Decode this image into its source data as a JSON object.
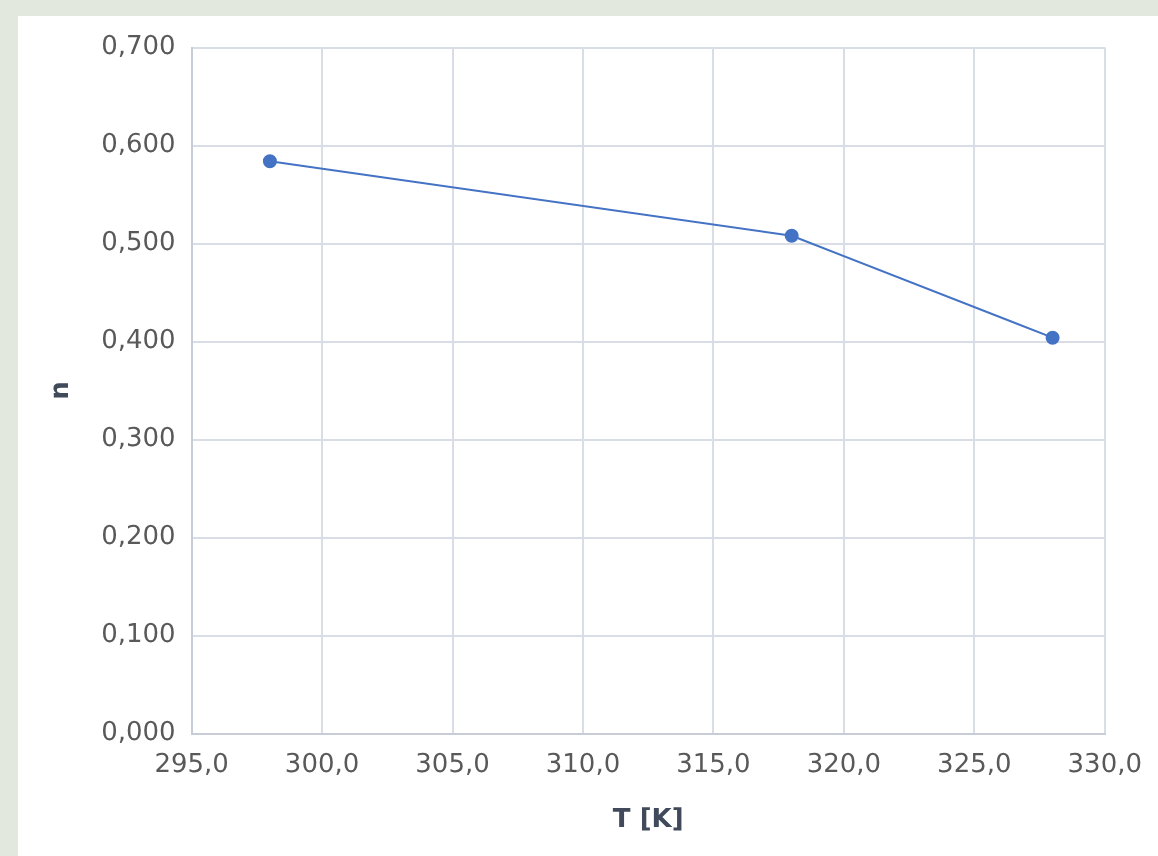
{
  "chart_data": {
    "type": "line",
    "xlabel": "T [K]",
    "ylabel": "n",
    "x": [
      298,
      318,
      328
    ],
    "series": [
      {
        "color": "#4472c4",
        "values": [
          0.584,
          0.508,
          0.404
        ]
      }
    ],
    "xlim": [
      295,
      330
    ],
    "xticks": [
      {
        "value": 295,
        "label": "295,0"
      },
      {
        "value": 300,
        "label": "300,0"
      },
      {
        "value": 305,
        "label": "305,0"
      },
      {
        "value": 310,
        "label": "310,0"
      },
      {
        "value": 315,
        "label": "315,0"
      },
      {
        "value": 320,
        "label": "320,0"
      },
      {
        "value": 325,
        "label": "325,0"
      },
      {
        "value": 330,
        "label": "330,0"
      }
    ],
    "ylim": [
      0,
      0.7
    ],
    "yticks": [
      {
        "value": 0,
        "label": "0,000"
      },
      {
        "value": 0.1,
        "label": "0,100"
      },
      {
        "value": 0.2,
        "label": "0,200"
      },
      {
        "value": 0.3,
        "label": "0,300"
      },
      {
        "value": 0.4,
        "label": "0,400"
      },
      {
        "value": 0.5,
        "label": "0,500"
      },
      {
        "value": 0.6,
        "label": "0,600"
      },
      {
        "value": 0.7,
        "label": "0,700"
      }
    ],
    "grid": true,
    "legend": false,
    "marker": "circle",
    "line_style": "solid"
  }
}
